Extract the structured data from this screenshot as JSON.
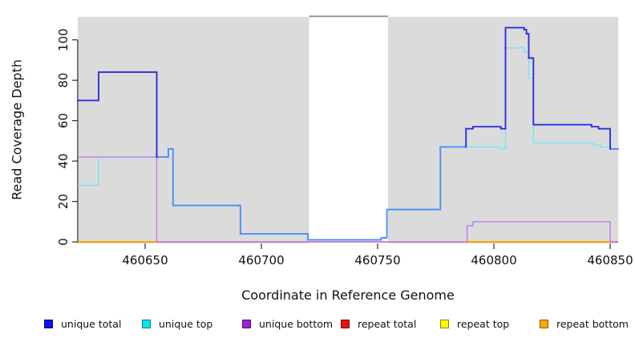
{
  "chart_data": {
    "type": "line",
    "step": true,
    "title": "",
    "xlabel": "Coordinate in Reference Genome",
    "ylabel": "Read Coverage Depth",
    "xlim": [
      460621,
      460853.5
    ],
    "ylim": [
      0,
      111
    ],
    "x_ticks": [
      460650,
      460700,
      460750,
      460800,
      460850
    ],
    "y_ticks": [
      0,
      20,
      40,
      60,
      80,
      100
    ],
    "grid": false,
    "legend_position": "bottom",
    "background_color": "#FFFFFF",
    "masked_region_color": "#DBDBDB",
    "masked_regions": [
      [
        460621,
        460720.5
      ],
      [
        460754.5,
        460853.5
      ]
    ],
    "unmasked_gap": [
      460720.5,
      460754.5
    ],
    "gap_cap_line_color": "#8A8A8A",
    "axis_color": "#2B2B2B",
    "series": [
      {
        "name": "unique total",
        "color": "#2E2EDF",
        "overlap_color": "#4B8FF8",
        "points": [
          [
            460621,
            70
          ],
          [
            460630,
            84
          ],
          [
            460655,
            42
          ],
          [
            460660,
            46
          ],
          [
            460662,
            18
          ],
          [
            460691,
            4
          ],
          [
            460720,
            1
          ],
          [
            460751.5,
            2
          ],
          [
            460754,
            16
          ],
          [
            460777,
            47
          ],
          [
            460788,
            56
          ],
          [
            460791,
            57
          ],
          [
            460803,
            56
          ],
          [
            460805,
            106
          ],
          [
            460813,
            105
          ],
          [
            460814,
            103
          ],
          [
            460815,
            91
          ],
          [
            460817,
            58
          ],
          [
            460842,
            57
          ],
          [
            460845,
            56
          ],
          [
            460850,
            46
          ]
        ]
      },
      {
        "name": "unique top",
        "color": "#76E7F0",
        "points": [
          [
            460621,
            28
          ],
          [
            460630,
            42
          ],
          [
            460660,
            46
          ],
          [
            460662,
            18
          ],
          [
            460691,
            4
          ],
          [
            460720,
            1
          ],
          [
            460751.5,
            2
          ],
          [
            460754,
            16
          ],
          [
            460777,
            47
          ],
          [
            460803,
            46
          ],
          [
            460805,
            96
          ],
          [
            460813,
            94
          ],
          [
            460815,
            81
          ],
          [
            460817,
            49
          ],
          [
            460843,
            48
          ],
          [
            460846,
            47
          ],
          [
            460850,
            46
          ]
        ]
      },
      {
        "name": "unique bottom",
        "color": "#C07CF0",
        "points": [
          [
            460621,
            42
          ],
          [
            460655,
            0
          ],
          [
            460788.5,
            8
          ],
          [
            460791,
            10
          ],
          [
            460850,
            0
          ]
        ]
      },
      {
        "name": "repeat total",
        "color": "#D04878",
        "points": [
          [
            460621,
            0
          ]
        ]
      },
      {
        "name": "repeat top",
        "color": "#FFFF00",
        "points": [
          [
            460621,
            0
          ]
        ]
      },
      {
        "name": "repeat bottom",
        "color": "#FFA500",
        "points": [
          [
            460621,
            0
          ]
        ],
        "visible_segments": [
          [
            460621,
            460655
          ],
          [
            460788.5,
            460850
          ]
        ]
      }
    ],
    "legend": [
      {
        "label": "unique total",
        "color": "#1111EE"
      },
      {
        "label": "unique top",
        "color": "#00E6F0"
      },
      {
        "label": "unique bottom",
        "color": "#9C1FD8"
      },
      {
        "label": "repeat total",
        "color": "#EE1111"
      },
      {
        "label": "repeat top",
        "color": "#FCFC00"
      },
      {
        "label": "repeat bottom",
        "color": "#FFA500"
      }
    ]
  }
}
